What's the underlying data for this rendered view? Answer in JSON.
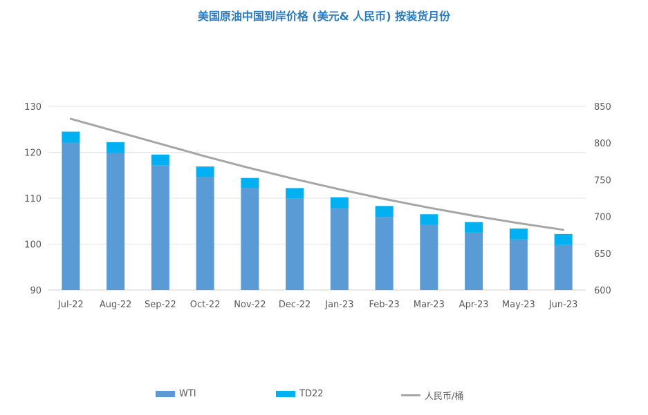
{
  "chart_data": {
    "type": "bar",
    "title": "美国原油中国到岸价格 (美元& 人民币) 按装货月份",
    "categories": [
      "Jul-22",
      "Aug-22",
      "Sep-22",
      "Oct-22",
      "Nov-22",
      "Dec-22",
      "Jan-23",
      "Feb-23",
      "Mar-23",
      "Apr-23",
      "May-23",
      "Jun-23"
    ],
    "series": [
      {
        "name": "WTI",
        "kind": "stacked-bar",
        "axis": "left",
        "color": "#5b9bd5",
        "values": [
          122.1,
          119.8,
          117.2,
          114.6,
          112.2,
          109.9,
          107.8,
          105.9,
          104.2,
          102.5,
          101.0,
          99.8
        ]
      },
      {
        "name": "TD22",
        "kind": "stacked-bar",
        "axis": "left",
        "color": "#00b0f0",
        "values": [
          2.4,
          2.4,
          2.3,
          2.3,
          2.2,
          2.3,
          2.4,
          2.4,
          2.3,
          2.3,
          2.4,
          2.4
        ]
      },
      {
        "name": "人民币/桶",
        "kind": "line",
        "axis": "right",
        "color": "#a5a5a5",
        "values": [
          833,
          816,
          799,
          782,
          766,
          751,
          737,
          724,
          712,
          701,
          691,
          682
        ]
      }
    ],
    "ylim": [
      90,
      130
    ],
    "yticks": [
      90,
      100,
      110,
      120,
      130
    ],
    "y2lim": [
      600,
      850
    ],
    "y2ticks": [
      600,
      650,
      700,
      750,
      800,
      850
    ],
    "grid": true,
    "legend_position": "bottom"
  }
}
